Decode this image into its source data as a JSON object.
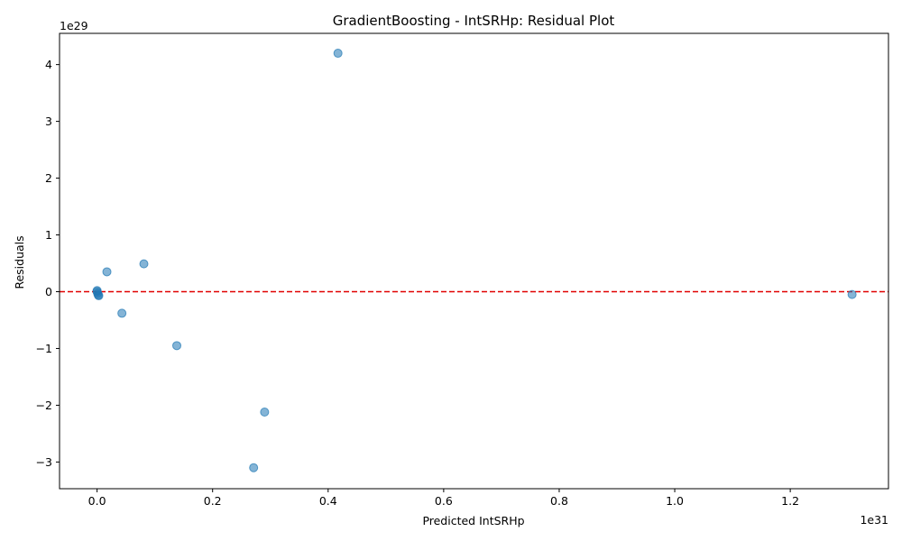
{
  "chart_data": {
    "type": "scatter",
    "title": "GradientBoosting - IntSRHp: Residual Plot",
    "xlabel": "Predicted IntSRHp",
    "ylabel": "Residuals",
    "x_offset_label": "1e31",
    "y_offset_label": "1e29",
    "xlim": [
      -0.065,
      1.37
    ],
    "ylim": [
      -3.47,
      4.55
    ],
    "x_ticks": [
      0.0,
      0.2,
      0.4,
      0.6,
      0.8,
      1.0,
      1.2
    ],
    "x_tick_labels": [
      "0.0",
      "0.2",
      "0.4",
      "0.6",
      "0.8",
      "1.0",
      "1.2"
    ],
    "y_ticks": [
      -3,
      -2,
      -1,
      0,
      1,
      2,
      3,
      4
    ],
    "y_tick_labels": [
      "−3",
      "−2",
      "−1",
      "0",
      "1",
      "2",
      "3",
      "4"
    ],
    "points": [
      {
        "x": 0.417,
        "y": 4.2
      },
      {
        "x": 0.081,
        "y": 0.49
      },
      {
        "x": 0.017,
        "y": 0.35
      },
      {
        "x": 0.0,
        "y": 0.02
      },
      {
        "x": 0.0,
        "y": 0.0
      },
      {
        "x": 0.001,
        "y": -0.03
      },
      {
        "x": 0.002,
        "y": -0.06
      },
      {
        "x": 0.003,
        "y": -0.07
      },
      {
        "x": 0.043,
        "y": -0.38
      },
      {
        "x": 0.138,
        "y": -0.95
      },
      {
        "x": 0.29,
        "y": -2.12
      },
      {
        "x": 0.271,
        "y": -3.1
      },
      {
        "x": 1.307,
        "y": -0.05
      }
    ],
    "reference_line": {
      "y": 0,
      "color": "#e00000",
      "style": "dashed"
    },
    "marker_color": "#1f77b4",
    "grid": false
  }
}
